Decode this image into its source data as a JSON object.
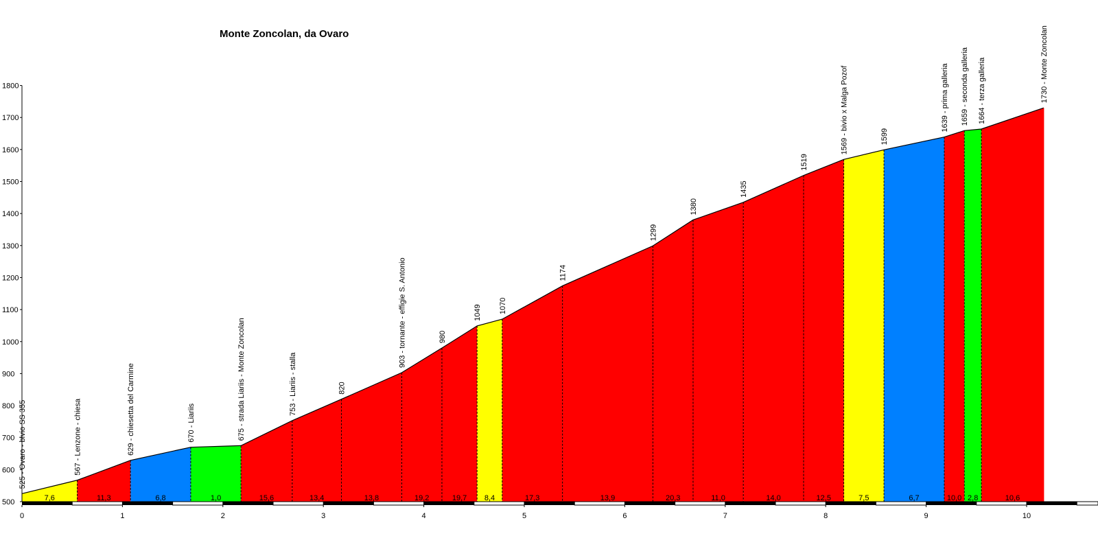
{
  "chart_data": {
    "type": "area",
    "title": "Monte Zoncolan, da Ovaro",
    "xlabel": "",
    "ylabel": "",
    "xlim": [
      0,
      10.5
    ],
    "ylim": [
      500,
      1800
    ],
    "x_ticks": [
      "0",
      "1",
      "2",
      "3",
      "4",
      "5",
      "6",
      "7",
      "8",
      "9",
      "10"
    ],
    "y_ticks": [
      "500",
      "600",
      "700",
      "800",
      "900",
      "1000",
      "1100",
      "1200",
      "1300",
      "1400",
      "1500",
      "1600",
      "1700",
      "1800"
    ],
    "colors": {
      "yellow": "#ffff00",
      "red": "#ff0000",
      "blue": "#0080ff",
      "green": "#00ff00"
    },
    "points": [
      {
        "km": 0.0,
        "alt": 525,
        "label": "525 - Ovaro - bivio SS 355"
      },
      {
        "km": 0.55,
        "alt": 567,
        "label": "567 - Lenzone - chiesa"
      },
      {
        "km": 1.08,
        "alt": 629,
        "label": "629 - chiesetta del Carmine"
      },
      {
        "km": 1.68,
        "alt": 670,
        "label": "670 - Liariis"
      },
      {
        "km": 2.18,
        "alt": 675,
        "label": "675 - strada Liariis - Monte Zoncolan"
      },
      {
        "km": 2.69,
        "alt": 753,
        "label": "753 - Liariis - stalla"
      },
      {
        "km": 3.18,
        "alt": 820,
        "label": "820"
      },
      {
        "km": 3.78,
        "alt": 903,
        "label": "903 - tornante - effigie S. Antonio"
      },
      {
        "km": 4.18,
        "alt": 980,
        "label": "980"
      },
      {
        "km": 4.53,
        "alt": 1049,
        "label": "1049"
      },
      {
        "km": 4.78,
        "alt": 1070,
        "label": "1070"
      },
      {
        "km": 5.38,
        "alt": 1174,
        "label": "1174"
      },
      {
        "km": 6.28,
        "alt": 1299,
        "label": "1299"
      },
      {
        "km": 6.68,
        "alt": 1380,
        "label": "1380"
      },
      {
        "km": 7.18,
        "alt": 1435,
        "label": "1435"
      },
      {
        "km": 7.78,
        "alt": 1519,
        "label": "1519"
      },
      {
        "km": 8.18,
        "alt": 1569,
        "label": "1569 - bivio x Malga Pozof"
      },
      {
        "km": 8.58,
        "alt": 1599,
        "label": "1599"
      },
      {
        "km": 9.18,
        "alt": 1639,
        "label": "1639 - prima galleria"
      },
      {
        "km": 9.38,
        "alt": 1659,
        "label": "1659 - seconda galleria"
      },
      {
        "km": 9.55,
        "alt": 1664,
        "label": "1664 - terza galleria"
      },
      {
        "km": 10.17,
        "alt": 1730,
        "label": "1730 - Monte Zoncolan"
      }
    ],
    "segments": [
      {
        "gradient": "7,6",
        "color": "yellow"
      },
      {
        "gradient": "11,3",
        "color": "red"
      },
      {
        "gradient": "6,8",
        "color": "blue"
      },
      {
        "gradient": "1,0",
        "color": "green"
      },
      {
        "gradient": "15,6",
        "color": "red"
      },
      {
        "gradient": "13,4",
        "color": "red"
      },
      {
        "gradient": "13,8",
        "color": "red"
      },
      {
        "gradient": "19,2",
        "color": "red"
      },
      {
        "gradient": "19,7",
        "color": "red"
      },
      {
        "gradient": "8,4",
        "color": "yellow"
      },
      {
        "gradient": "17,3",
        "color": "red"
      },
      {
        "gradient": "13,9",
        "color": "red"
      },
      {
        "gradient": "20,3",
        "color": "red"
      },
      {
        "gradient": "11,0",
        "color": "red"
      },
      {
        "gradient": "14,0",
        "color": "red"
      },
      {
        "gradient": "12,5",
        "color": "red"
      },
      {
        "gradient": "7,5",
        "color": "yellow"
      },
      {
        "gradient": "6,7",
        "color": "blue"
      },
      {
        "gradient": "10,0",
        "color": "red"
      },
      {
        "gradient": "2,8",
        "color": "green"
      },
      {
        "gradient": "10,6",
        "color": "red"
      }
    ]
  }
}
